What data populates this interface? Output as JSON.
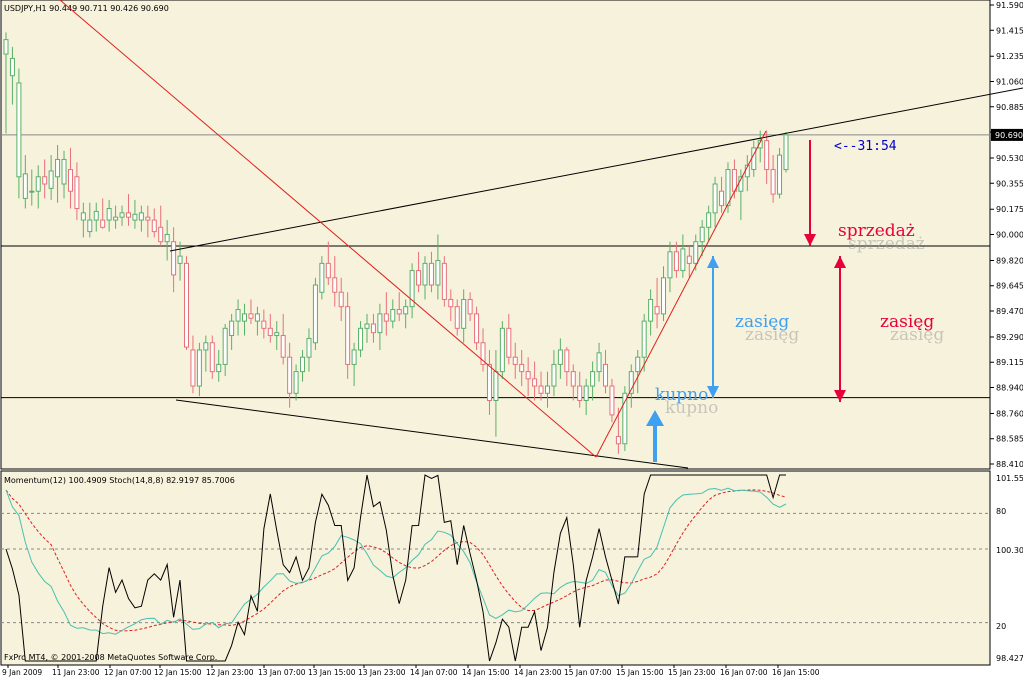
{
  "colors": {
    "background": "#f7f2dc",
    "frame": "#000000",
    "bull_candle": "#59b06a",
    "bear_candle": "#e8707a",
    "trend_black": "#000000",
    "trend_red": "#e0201c",
    "sell_red": "#e8003a",
    "buy_blue": "#3f9ff0",
    "timer_blue": "#0000cc",
    "stoch_main": "#48c0b0",
    "stoch_signal": "#e02020",
    "momentum": "#000000",
    "price_box_bg": "#000000",
    "price_box_text": "#ffffff"
  },
  "header": {
    "symbol_line": "USDJPY,H1  90.449 90.711 90.426 90.690",
    "indicator_line": "Momentum(12) 100.4909  Stoch(14,8,8) 82.9197 85.7006",
    "copyright": "FxPro MT4, © 2001-2008 MetaQuotes Software Corp."
  },
  "annotations": {
    "timer": "<--31:54",
    "sell": "sprzedaż",
    "range_left": "zasięg",
    "range_right": "zasięg",
    "buy": "kupno"
  },
  "current_price_label": "90.690",
  "price_ticks": [
    "91.590",
    "91.415",
    "91.235",
    "91.060",
    "90.885",
    "90.710",
    "90.530",
    "90.355",
    "90.175",
    "90.000",
    "89.820",
    "89.645",
    "89.470",
    "89.290",
    "89.115",
    "88.940",
    "88.760",
    "88.585",
    "88.410"
  ],
  "indicator_ticks": [
    "101.558",
    "80",
    "100.3048",
    "20",
    "98.427"
  ],
  "time_ticks": [
    "9 Jan 2009",
    "11 Jan 23:00",
    "12 Jan 07:00",
    "12 Jan 15:00",
    "12 Jan 23:00",
    "13 Jan 07:00",
    "13 Jan 15:00",
    "13 Jan 23:00",
    "14 Jan 07:00",
    "14 Jan 15:00",
    "14 Jan 23:00",
    "15 Jan 07:00",
    "15 Jan 15:00",
    "15 Jan 23:00",
    "16 Jan 07:00",
    "16 Jan 15:00"
  ],
  "chart_data": {
    "type": "candlestick",
    "symbol": "USDJPY",
    "timeframe": "H1",
    "ylim": [
      88.41,
      91.59
    ],
    "current_price": 90.69,
    "horizontal_lines": [
      90.69,
      89.92,
      88.87
    ],
    "candles": [
      [
        91.25,
        91.4,
        90.7,
        91.35
      ],
      [
        91.1,
        91.3,
        90.9,
        91.22
      ],
      [
        90.4,
        91.15,
        90.25,
        91.05
      ],
      [
        90.25,
        90.55,
        90.18,
        90.42
      ],
      [
        90.3,
        90.45,
        90.2,
        90.3
      ],
      [
        90.3,
        90.48,
        90.18,
        90.4
      ],
      [
        90.4,
        90.52,
        90.25,
        90.35
      ],
      [
        90.32,
        90.55,
        90.24,
        90.44
      ],
      [
        90.4,
        90.62,
        90.22,
        90.52
      ],
      [
        90.35,
        90.58,
        90.25,
        90.52
      ],
      [
        90.45,
        90.6,
        90.18,
        90.3
      ],
      [
        90.4,
        90.5,
        90.1,
        90.18
      ],
      [
        90.1,
        90.22,
        89.98,
        90.15
      ],
      [
        90.02,
        90.22,
        89.98,
        90.1
      ],
      [
        90.1,
        90.22,
        90.02,
        90.16
      ],
      [
        90.1,
        90.25,
        90.04,
        90.05
      ],
      [
        90.1,
        90.24,
        90.02,
        90.18
      ],
      [
        90.1,
        90.2,
        90.04,
        90.12
      ],
      [
        90.12,
        90.2,
        90.06,
        90.15
      ],
      [
        90.15,
        90.28,
        90.06,
        90.12
      ],
      [
        90.1,
        90.24,
        90.04,
        90.14
      ],
      [
        90.1,
        90.2,
        90.02,
        90.15
      ],
      [
        90.12,
        90.2,
        89.98,
        90.1
      ],
      [
        90.1,
        90.18,
        89.98,
        90.02
      ],
      [
        90.05,
        90.2,
        89.92,
        89.95
      ],
      [
        89.95,
        90.1,
        89.82,
        90.0
      ],
      [
        89.95,
        90.05,
        89.6,
        89.72
      ],
      [
        89.8,
        89.95,
        89.68,
        89.85
      ],
      [
        89.8,
        89.85,
        89.2,
        89.22
      ],
      [
        89.2,
        89.3,
        88.9,
        88.95
      ],
      [
        88.95,
        89.25,
        88.88,
        89.2
      ],
      [
        89.2,
        89.3,
        89.05,
        89.25
      ],
      [
        89.25,
        89.3,
        89.0,
        89.05
      ],
      [
        89.05,
        89.2,
        88.98,
        89.1
      ],
      [
        89.1,
        89.38,
        89.02,
        89.35
      ],
      [
        89.3,
        89.45,
        89.2,
        89.4
      ],
      [
        89.4,
        89.55,
        89.3,
        89.48
      ],
      [
        89.4,
        89.52,
        89.3,
        89.45
      ],
      [
        89.45,
        89.55,
        89.38,
        89.42
      ],
      [
        89.4,
        89.5,
        89.3,
        89.45
      ],
      [
        89.4,
        89.48,
        89.28,
        89.35
      ],
      [
        89.35,
        89.45,
        89.25,
        89.3
      ],
      [
        89.3,
        89.4,
        89.2,
        89.32
      ],
      [
        89.3,
        89.45,
        89.1,
        89.15
      ],
      [
        89.15,
        89.25,
        88.8,
        88.9
      ],
      [
        88.9,
        89.1,
        88.85,
        89.05
      ],
      [
        89.05,
        89.2,
        88.98,
        89.15
      ],
      [
        89.15,
        89.35,
        89.05,
        89.28
      ],
      [
        89.25,
        89.7,
        89.2,
        89.65
      ],
      [
        89.6,
        89.85,
        89.55,
        89.8
      ],
      [
        89.8,
        89.95,
        89.65,
        89.7
      ],
      [
        89.7,
        89.85,
        89.5,
        89.6
      ],
      [
        89.6,
        89.7,
        89.4,
        89.5
      ],
      [
        89.5,
        89.6,
        89.0,
        89.1
      ],
      [
        89.1,
        89.25,
        88.95,
        89.2
      ],
      [
        89.2,
        89.4,
        89.15,
        89.35
      ],
      [
        89.35,
        89.45,
        89.25,
        89.38
      ],
      [
        89.38,
        89.45,
        89.25,
        89.32
      ],
      [
        89.32,
        89.52,
        89.2,
        89.45
      ],
      [
        89.45,
        89.6,
        89.3,
        89.4
      ],
      [
        89.4,
        89.55,
        89.35,
        89.48
      ],
      [
        89.48,
        89.6,
        89.4,
        89.45
      ],
      [
        89.45,
        89.55,
        89.35,
        89.5
      ],
      [
        89.5,
        89.8,
        89.42,
        89.75
      ],
      [
        89.75,
        89.88,
        89.6,
        89.65
      ],
      [
        89.65,
        89.85,
        89.55,
        89.8
      ],
      [
        89.8,
        89.88,
        89.6,
        89.65
      ],
      [
        89.65,
        90.0,
        89.55,
        89.82
      ],
      [
        89.8,
        89.85,
        89.5,
        89.55
      ],
      [
        89.55,
        89.62,
        89.4,
        89.5
      ],
      [
        89.5,
        89.55,
        89.3,
        89.35
      ],
      [
        89.35,
        89.62,
        89.25,
        89.55
      ],
      [
        89.55,
        89.6,
        89.4,
        89.45
      ],
      [
        89.45,
        89.5,
        89.2,
        89.25
      ],
      [
        89.25,
        89.35,
        89.05,
        89.1
      ],
      [
        89.1,
        89.2,
        88.75,
        88.85
      ],
      [
        88.85,
        89.2,
        88.6,
        89.05
      ],
      [
        89.05,
        89.4,
        89.0,
        89.35
      ],
      [
        89.35,
        89.45,
        89.1,
        89.15
      ],
      [
        89.15,
        89.25,
        89.0,
        89.1
      ],
      [
        89.1,
        89.2,
        88.95,
        89.05
      ],
      [
        89.05,
        89.15,
        88.88,
        89.0
      ],
      [
        89.0,
        89.12,
        88.85,
        88.95
      ],
      [
        88.95,
        89.05,
        88.85,
        88.9
      ],
      [
        88.9,
        89.05,
        88.8,
        88.95
      ],
      [
        88.95,
        89.2,
        88.88,
        89.1
      ],
      [
        89.1,
        89.28,
        89.0,
        89.2
      ],
      [
        89.2,
        89.22,
        88.95,
        89.05
      ],
      [
        89.05,
        89.1,
        88.85,
        88.95
      ],
      [
        88.95,
        89.05,
        88.8,
        88.85
      ],
      [
        88.85,
        89.0,
        88.75,
        88.95
      ],
      [
        88.95,
        89.12,
        88.85,
        89.05
      ],
      [
        89.05,
        89.25,
        88.98,
        89.18
      ],
      [
        89.1,
        89.2,
        88.9,
        88.95
      ],
      [
        88.95,
        89.0,
        88.7,
        88.75
      ],
      [
        88.6,
        88.8,
        88.48,
        88.55
      ],
      [
        88.55,
        88.95,
        88.5,
        88.9
      ],
      [
        88.9,
        89.1,
        88.8,
        89.05
      ],
      [
        89.05,
        89.2,
        88.9,
        89.15
      ],
      [
        89.15,
        89.45,
        89.05,
        89.4
      ],
      [
        89.4,
        89.62,
        89.3,
        89.55
      ],
      [
        89.5,
        89.7,
        89.35,
        89.45
      ],
      [
        89.45,
        89.78,
        89.4,
        89.7
      ],
      [
        89.7,
        89.95,
        89.6,
        89.88
      ],
      [
        89.88,
        89.95,
        89.7,
        89.75
      ],
      [
        89.75,
        90.0,
        89.7,
        89.9
      ],
      [
        89.85,
        89.92,
        89.7,
        89.8
      ],
      [
        89.8,
        90.0,
        89.75,
        89.95
      ],
      [
        89.95,
        90.1,
        89.85,
        90.05
      ],
      [
        90.05,
        90.2,
        89.95,
        90.15
      ],
      [
        90.15,
        90.4,
        90.05,
        90.35
      ],
      [
        90.3,
        90.4,
        90.15,
        90.2
      ],
      [
        90.2,
        90.5,
        90.15,
        90.45
      ],
      [
        90.45,
        90.52,
        90.25,
        90.3
      ],
      [
        90.3,
        90.45,
        90.1,
        90.4
      ],
      [
        90.4,
        90.55,
        90.3,
        90.48
      ],
      [
        90.45,
        90.65,
        90.4,
        90.6
      ],
      [
        90.6,
        90.72,
        90.5,
        90.65
      ],
      [
        90.65,
        90.72,
        90.35,
        90.45
      ],
      [
        90.45,
        90.55,
        90.22,
        90.28
      ],
      [
        90.28,
        90.6,
        90.25,
        90.55
      ],
      [
        90.45,
        90.71,
        90.43,
        90.69
      ]
    ],
    "momentum_panel": {
      "indicators": [
        "Momentum(12)",
        "Stoch(14,8,8)"
      ],
      "momentum_last": 100.4909,
      "stoch_main_last": 82.9197,
      "stoch_signal_last": 85.7006,
      "levels": [
        80,
        20
      ]
    }
  }
}
